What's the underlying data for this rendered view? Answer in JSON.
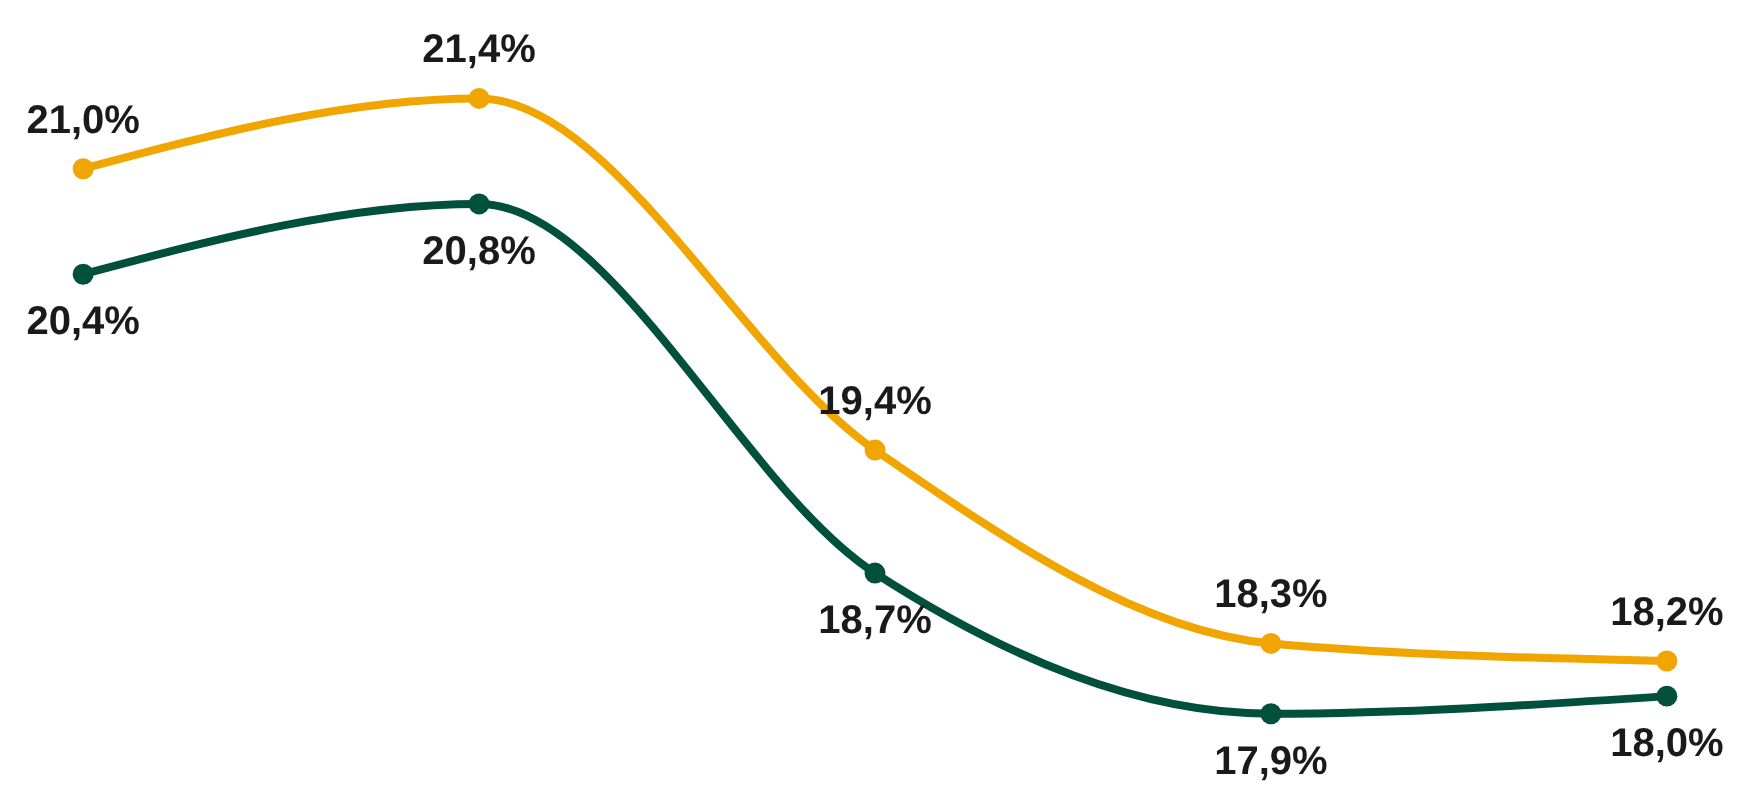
{
  "chart_data": {
    "type": "line",
    "categories": [
      null,
      null,
      null,
      null,
      null
    ],
    "marker": "circle",
    "line_style": "solid",
    "series": [
      {
        "color": "#f0a500",
        "values": [
          21.0,
          21.4,
          19.4,
          18.3,
          18.2
        ],
        "value_labels": [
          "21,0%",
          "21,4%",
          "19,4%",
          "18,3%",
          "18,2%"
        ]
      },
      {
        "color": "#00503c",
        "values": [
          20.4,
          20.8,
          18.7,
          17.9,
          18.0
        ],
        "value_labels": [
          "20,4%",
          "20,8%",
          "18,7%",
          "17,9%",
          "18,0%"
        ]
      }
    ]
  }
}
